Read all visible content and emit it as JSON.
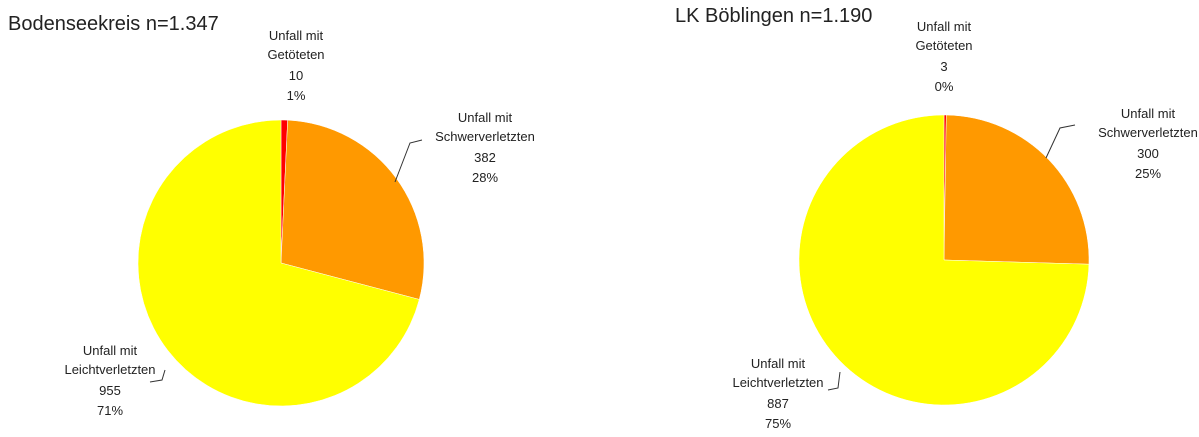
{
  "chart_data": [
    {
      "type": "pie",
      "title": "Bodenseekreis n=1.347",
      "categories": [
        "Unfall mit Getöteten",
        "Unfall mit Schwerverletzten",
        "Unfall mit Leichtverletzten"
      ],
      "values": [
        10,
        382,
        955
      ],
      "percent_labels": [
        "1%",
        "28%",
        "71%"
      ],
      "colors": [
        "#ff0000",
        "#ff9900",
        "#ffff00"
      ]
    },
    {
      "type": "pie",
      "title": "LK Böblingen n=1.190",
      "categories": [
        "Unfall mit Getöteten",
        "Unfall mit Schwerverletzten",
        "Unfall mit Leichtverletzten"
      ],
      "values": [
        3,
        300,
        887
      ],
      "percent_labels": [
        "0%",
        "25%",
        "75%"
      ],
      "colors": [
        "#ff0000",
        "#ff9900",
        "#ffff00"
      ]
    }
  ]
}
